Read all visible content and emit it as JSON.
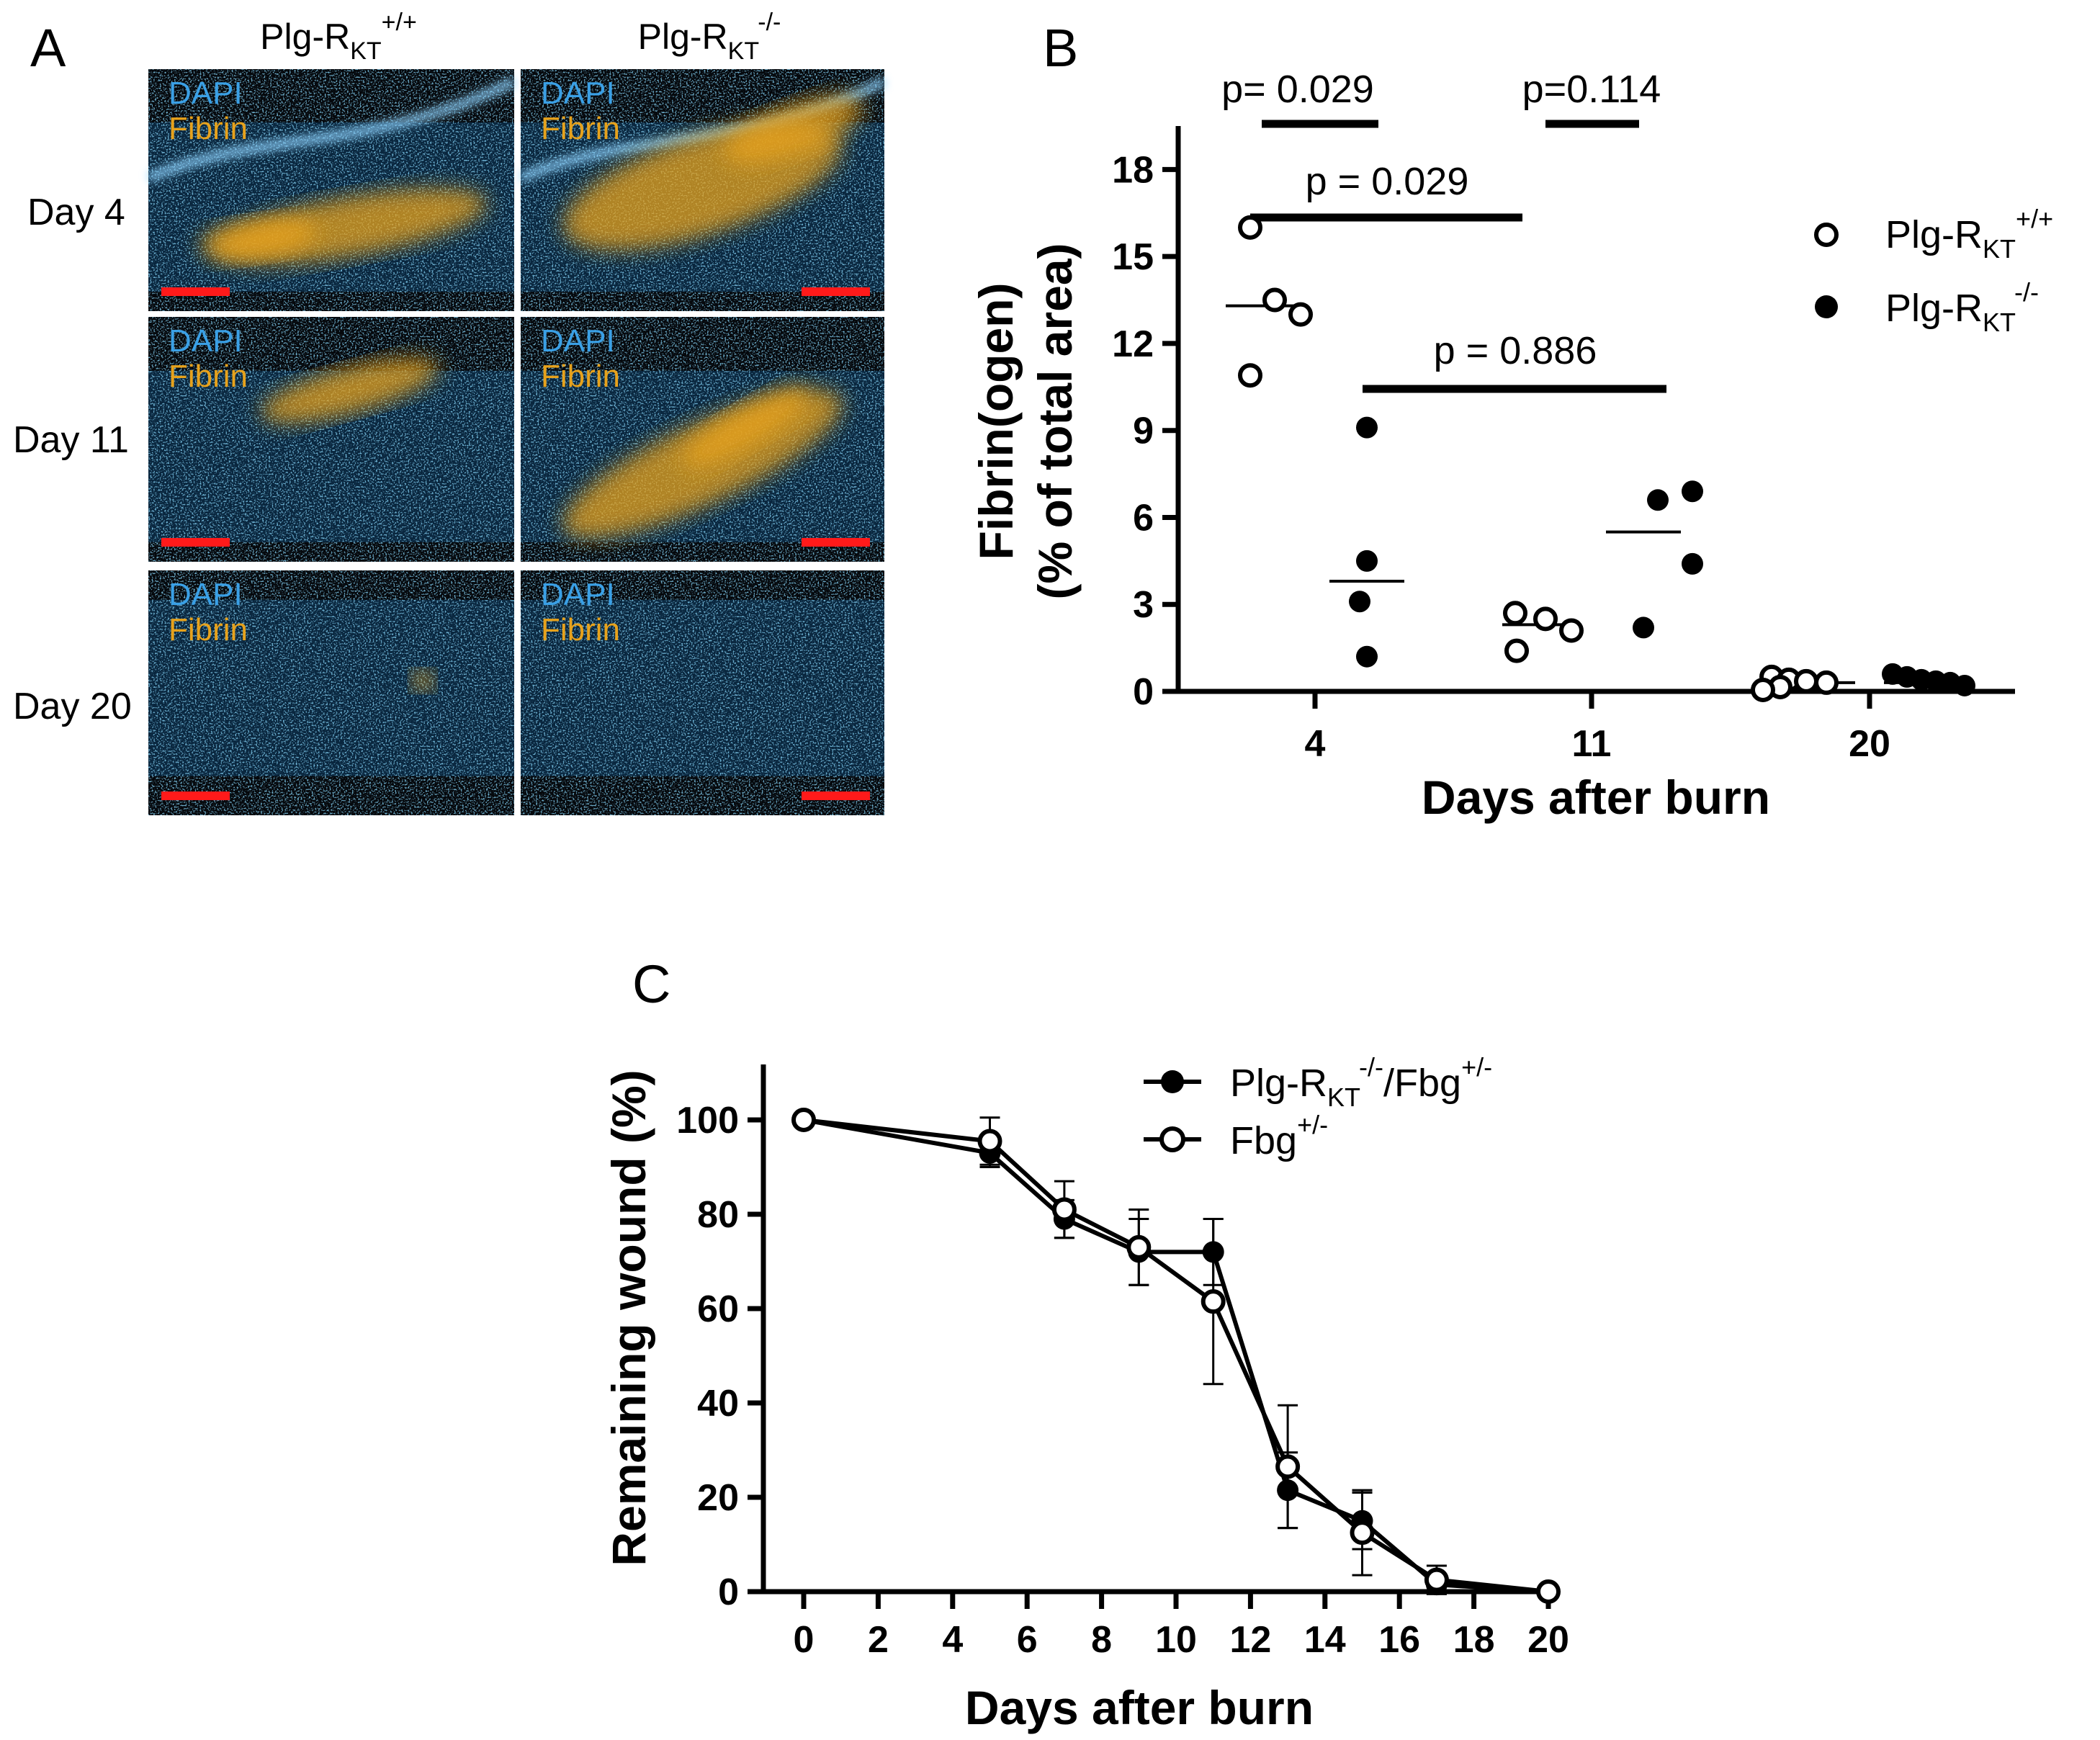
{
  "panel_labels": {
    "a": "A",
    "b": "B",
    "c": "C"
  },
  "micrographs": {
    "groups": [
      {
        "base": "Plg-R",
        "sub": "KT",
        "sup": "+/+"
      },
      {
        "base": "Plg-R",
        "sub": "KT",
        "sup": "-/-"
      }
    ],
    "rows": [
      "Day 4",
      "Day 11",
      "Day 20"
    ],
    "stain_labels": [
      "DAPI",
      "Fibrin"
    ],
    "colors": {
      "dapi": "#3aa0e6",
      "fibrin": "#e7a21c",
      "scale_bar": "#ff1a1a"
    }
  },
  "chart_data": [
    {
      "type": "scatter",
      "panel": "B",
      "xlabel": "Days after burn",
      "ylabel": [
        "Fibrin(ogen)",
        "(% of total area)"
      ],
      "categories": [
        "4",
        "11",
        "20"
      ],
      "ylim": [
        0,
        19.5
      ],
      "yticks": [
        0,
        3,
        6,
        9,
        12,
        15,
        18
      ],
      "series": [
        {
          "name": {
            "base": "Plg-R",
            "sub": "KT",
            "sup": "+/+"
          },
          "marker": "open-circle",
          "points": {
            "4": [
              16.0,
              13.5,
              13.0,
              10.9
            ],
            "11": [
              2.7,
              2.5,
              2.1,
              1.4
            ],
            "20": [
              0.5,
              0.4,
              0.35,
              0.3,
              0.15,
              0.05
            ]
          },
          "means": {
            "4": 13.3,
            "11": 2.3,
            "20": 0.3
          }
        },
        {
          "name": {
            "base": "Plg-R",
            "sub": "KT",
            "sup": "-/-"
          },
          "marker": "filled-circle",
          "points": {
            "4": [
              9.1,
              4.5,
              3.1,
              1.2
            ],
            "11": [
              6.9,
              6.6,
              4.4,
              2.2
            ],
            "20": [
              0.6,
              0.5,
              0.4,
              0.35,
              0.3,
              0.2
            ]
          },
          "means": {
            "4": 3.8,
            "11": 5.5,
            "20": 0.3
          }
        }
      ],
      "comparisons": [
        {
          "label": "p= 0.029",
          "from": "4:0",
          "to": "4:1"
        },
        {
          "label": "p=0.114",
          "from": "11:0",
          "to": "11:1"
        },
        {
          "label": "p = 0.029",
          "from": "4:0",
          "to": "11:0"
        },
        {
          "label": "p = 0.886",
          "from": "4:1",
          "to": "11:1"
        }
      ],
      "legend_position": "top-right"
    },
    {
      "type": "line",
      "panel": "C",
      "xlabel": "Days after burn",
      "ylabel": "Remaining wound (%)",
      "xlim": [
        0,
        20
      ],
      "ylim": [
        0,
        110
      ],
      "xticks": [
        0,
        2,
        4,
        6,
        8,
        10,
        12,
        14,
        16,
        18,
        20
      ],
      "yticks": [
        0,
        20,
        40,
        60,
        80,
        100
      ],
      "series": [
        {
          "name": {
            "base": "Plg-R",
            "sub": "KT",
            "sup": "-/-",
            "tail": "/Fbg",
            "tail_sup": "+/-"
          },
          "marker": "filled-circle",
          "x": [
            0,
            5,
            7,
            9,
            11,
            13,
            15,
            17,
            20
          ],
          "y": [
            100,
            93,
            79,
            72,
            72,
            21.5,
            15,
            1.5,
            0
          ],
          "err": [
            0,
            3,
            4,
            7,
            7,
            8,
            6,
            2,
            0
          ]
        },
        {
          "name": {
            "base": "Fbg",
            "sup": "+/-"
          },
          "marker": "open-circle",
          "x": [
            0,
            5,
            7,
            9,
            11,
            13,
            15,
            17,
            20
          ],
          "y": [
            100,
            95.5,
            81,
            73,
            61.5,
            26.5,
            12.5,
            2.5,
            0
          ],
          "err": [
            0,
            5,
            6,
            8,
            17.5,
            13,
            9,
            3,
            0
          ]
        }
      ],
      "legend_position": "top-right"
    }
  ]
}
